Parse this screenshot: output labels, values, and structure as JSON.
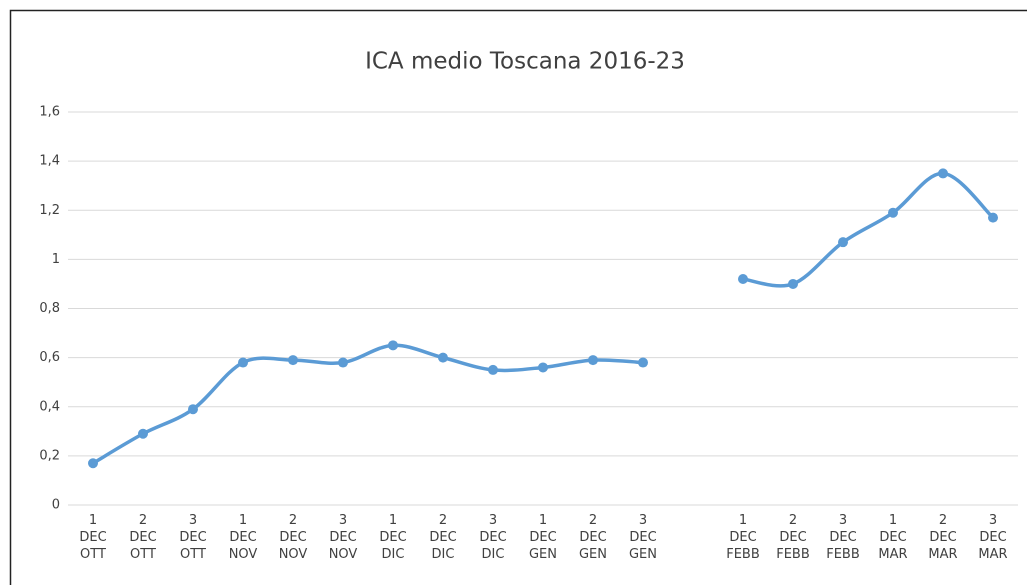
{
  "chart_data": {
    "type": "line",
    "title": "ICA medio Toscana 2016-23",
    "categories": [
      "1 DEC OTT",
      "2 DEC OTT",
      "3 DEC OTT",
      "1 DEC NOV",
      "2 DEC NOV",
      "3 DEC NOV",
      "1 DEC DIC",
      "2 DEC DIC",
      "3 DEC DIC",
      "1 DEC GEN",
      "2 DEC GEN",
      "3 DEC GEN",
      null,
      "1 DEC FEBB",
      "2 DEC FEBB",
      "3 DEC FEBB",
      "1 DEC MAR",
      "2 DEC MAR",
      "3 DEC MAR"
    ],
    "series": [
      {
        "name": "ICA medio",
        "color": "#5b9bd5",
        "values": [
          0.17,
          0.29,
          0.39,
          0.58,
          0.59,
          0.58,
          0.65,
          0.6,
          0.55,
          0.56,
          0.59,
          0.58,
          null,
          0.92,
          0.9,
          1.07,
          1.19,
          1.35,
          1.17
        ]
      }
    ],
    "ylim": [
      0,
      1.6
    ],
    "yticks": [
      0,
      {
        "value": 0.2,
        "label": "0,2"
      },
      {
        "value": 0.4,
        "label": "0,4"
      },
      {
        "value": 0.6,
        "label": "0,6"
      },
      {
        "value": 0.8,
        "label": "0,8"
      },
      1,
      {
        "value": 1.2,
        "label": "1,2"
      },
      {
        "value": 1.4,
        "label": "1,4"
      },
      {
        "value": 1.6,
        "label": "1,6"
      }
    ],
    "grid": true,
    "smooth": true
  }
}
